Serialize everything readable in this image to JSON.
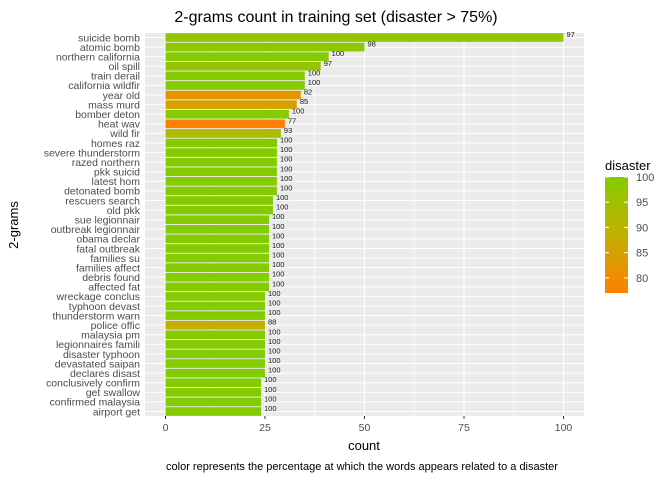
{
  "chart_data": {
    "type": "bar",
    "orientation": "horizontal",
    "title": "2-grams count in training set (disaster > 75%)",
    "xlabel": "count",
    "ylabel": "2-grams",
    "caption": "color represents the percentage at which the words appears related to a disaster",
    "xlim": [
      0,
      100
    ],
    "x_ticks": [
      0,
      25,
      50,
      75,
      100
    ],
    "grid": true,
    "categories": [
      "suicide bomb",
      "atomic bomb",
      "northern california",
      "oil spill",
      "train derail",
      "california wildfir",
      "year old",
      "mass murd",
      "bomber deton",
      "heat wav",
      "wild fir",
      "homes raz",
      "severe thunderstorm",
      "razed northern",
      "pkk suicid",
      "latest hom",
      "detonated bomb",
      "rescuers search",
      "old pkk",
      "sue legionnair",
      "outbreak legionnair",
      "obama declar",
      "fatal outbreak",
      "families su",
      "families affect",
      "debris found",
      "affected fat",
      "wreckage conclus",
      "typhoon devast",
      "thunderstorm warn",
      "police offic",
      "malaysia pm",
      "legionnaires famili",
      "disaster typhoon",
      "devastated saipan",
      "declares disast",
      "conclusively confirm",
      "get swallow",
      "confirmed malaysia",
      "airport get"
    ],
    "values": [
      100,
      50,
      41,
      39,
      35,
      35,
      34,
      33,
      31,
      30,
      29,
      28,
      28,
      28,
      28,
      28,
      28,
      27,
      27,
      26,
      26,
      26,
      26,
      26,
      26,
      26,
      26,
      25,
      25,
      25,
      25,
      25,
      25,
      25,
      25,
      25,
      24,
      24,
      24,
      24
    ],
    "disaster_pct": [
      97,
      98,
      100,
      97,
      100,
      100,
      82,
      85,
      100,
      77,
      93,
      100,
      100,
      100,
      100,
      100,
      100,
      100,
      100,
      100,
      100,
      100,
      100,
      100,
      100,
      100,
      100,
      100,
      100,
      100,
      88,
      100,
      100,
      100,
      100,
      100,
      100,
      100,
      100,
      100
    ],
    "legend": {
      "title": "disaster",
      "position": "right",
      "ticks": [
        100,
        95,
        90,
        85,
        80
      ],
      "range": [
        77,
        100
      ],
      "colors": {
        "low": "#ff8000",
        "mid": "#c2b000",
        "high": "#84cc00"
      }
    },
    "colors": {
      "panel": "#ebebeb",
      "grid": "#ffffff"
    }
  }
}
